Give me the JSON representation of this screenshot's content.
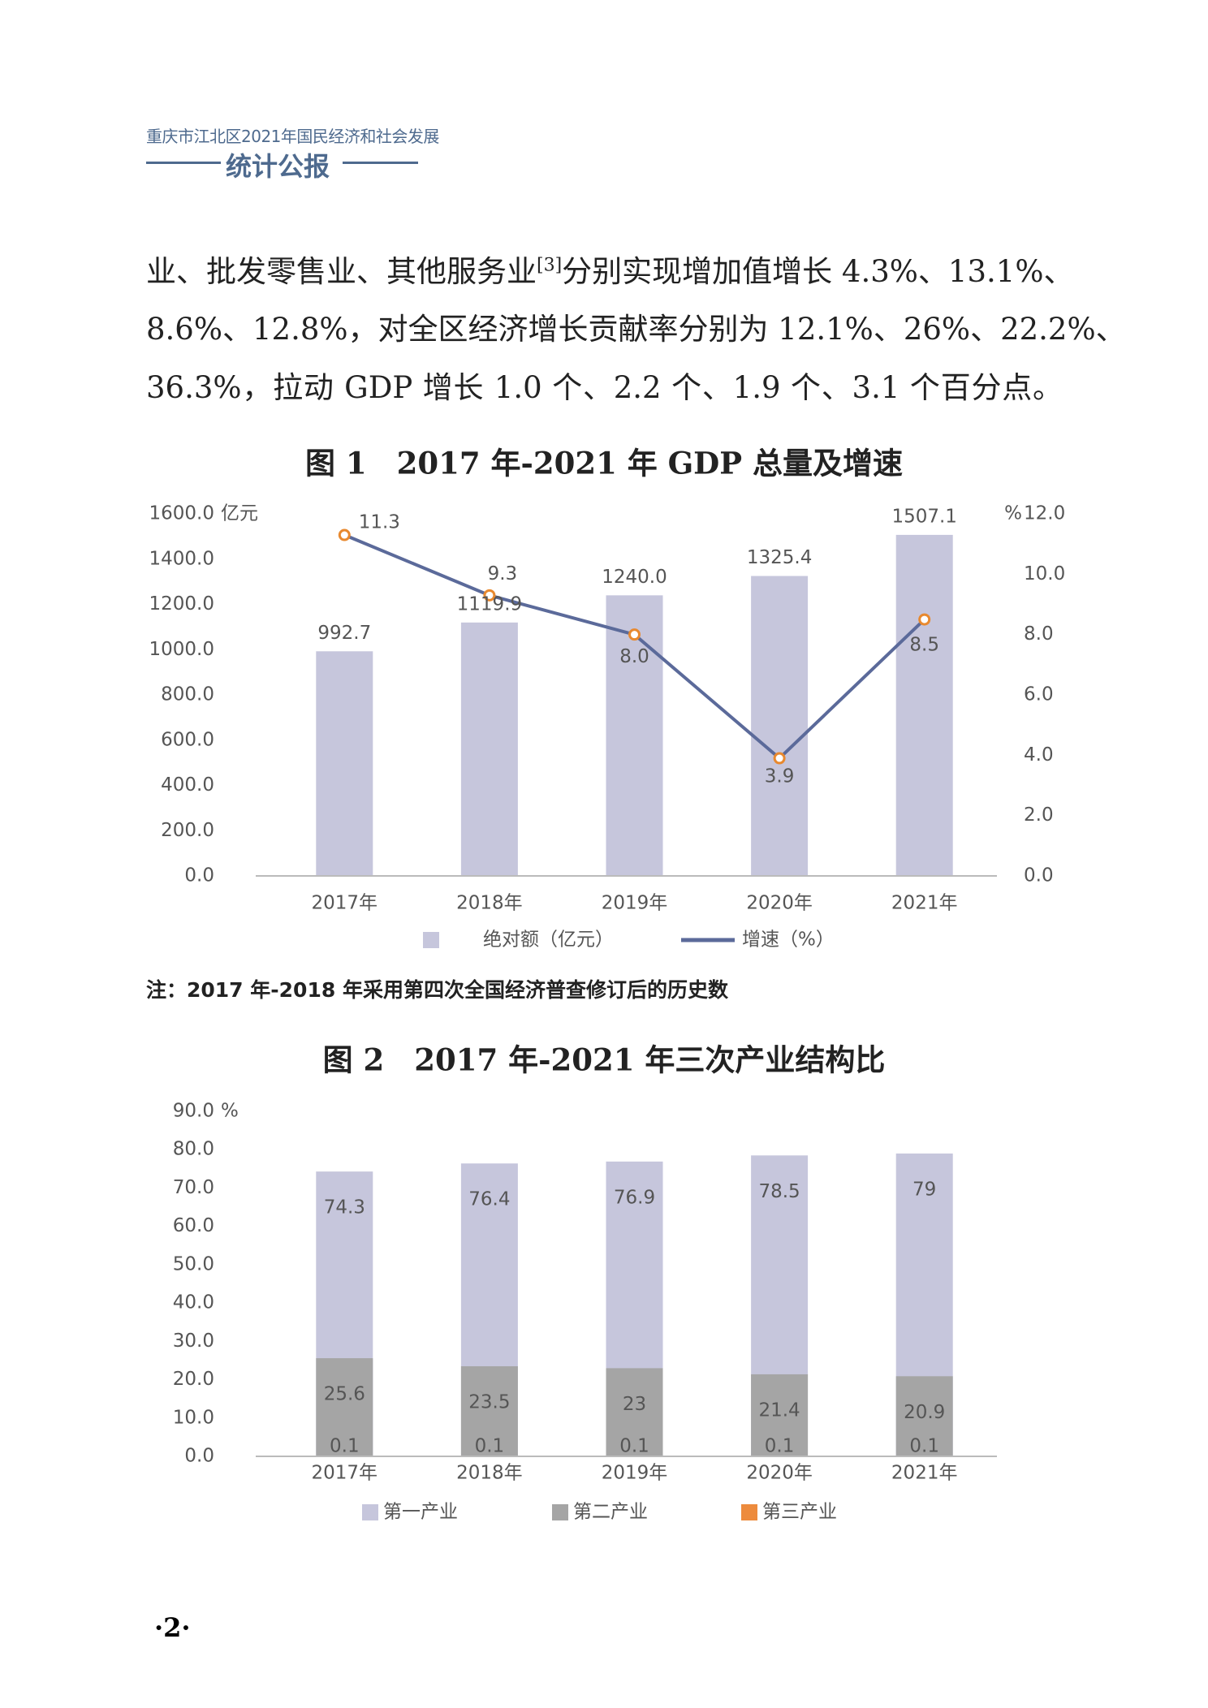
{
  "header": {
    "subtitle": "重庆市江北区2021年国民经济和社会发展",
    "title": "统计公报"
  },
  "paragraph": {
    "lines": [
      "业、批发零售业、其他服务业",
      "分别实现增加值增长 4.3%、13.1%、",
      "8.6%、12.8%，对全区经济增长贡献率分别为 12.1%、26%、22.2%、",
      "36.3%，拉动 GDP 增长 1.0 个、2.2 个、1.9 个、3.1 个百分点。"
    ],
    "footnote_ref": "[3]"
  },
  "note": "注：2017 年-2018 年采用第四次全国经济普查修订后的历史数",
  "page_number": "·2·",
  "chart_data": [
    {
      "type": "bar",
      "title": "图 1　2017 年-2021 年 GDP 总量及增速",
      "y_label": "亿元",
      "y2_label": "%",
      "categories": [
        "2017年",
        "2018年",
        "2019年",
        "2020年",
        "2021年"
      ],
      "series": [
        {
          "name": "绝对额（亿元）",
          "color": "#c6c6dc",
          "values": [
            992.7,
            1119.9,
            1240.0,
            1325.4,
            1507.1
          ],
          "value_labels": [
            "992.7",
            "1119.9",
            "1240.0",
            "1325.4",
            "1507.1"
          ]
        },
        {
          "name": "增速（%）",
          "type": "line",
          "axis": "y2",
          "color": "#5b6a9a",
          "marker_color": "#e8892f",
          "values": [
            11.3,
            9.3,
            8.0,
            3.9,
            8.5
          ],
          "value_labels": [
            "11.3",
            "9.3",
            "8.0",
            "3.9",
            "8.5"
          ]
        }
      ],
      "ylim": [
        0,
        1600
      ],
      "yticks": [
        {
          "value": 0,
          "label": "0.0"
        },
        {
          "value": 200,
          "label": "200.0"
        },
        {
          "value": 400,
          "label": "400.0"
        },
        {
          "value": 600,
          "label": "600.0"
        },
        {
          "value": 800,
          "label": "800.0"
        },
        {
          "value": 1000,
          "label": "1000.0"
        },
        {
          "value": 1200,
          "label": "1200.0"
        },
        {
          "value": 1400,
          "label": "1400.0"
        },
        {
          "value": 1600,
          "label": "1600.0"
        }
      ],
      "y2lim": [
        0,
        12
      ],
      "y2ticks": [
        {
          "value": 0,
          "label": "0.0"
        },
        {
          "value": 2,
          "label": "2.0"
        },
        {
          "value": 4,
          "label": "4.0"
        },
        {
          "value": 6,
          "label": "6.0"
        },
        {
          "value": 8,
          "label": "8.0"
        },
        {
          "value": 10,
          "label": "10.0"
        },
        {
          "value": 12,
          "label": "12.0"
        }
      ],
      "grid": false,
      "legend": "bottom"
    },
    {
      "type": "bar",
      "title": "图 2　2017 年-2021 年三次产业结构比",
      "y_label": "%",
      "categories": [
        "2017年",
        "2018年",
        "2019年",
        "2020年",
        "2021年"
      ],
      "series": [
        {
          "name": "第一产业",
          "color": "#c6c6dc",
          "values": [
            74.3,
            76.4,
            76.9,
            78.5,
            79
          ]
        },
        {
          "name": "第二产业",
          "color": "#a5a5a5",
          "values": [
            25.6,
            23.5,
            23,
            21.4,
            20.9
          ]
        },
        {
          "name": "第三产业",
          "color": "#ed8b3d",
          "values": [
            0.1,
            0.1,
            0.1,
            0.1,
            0.1
          ]
        }
      ],
      "ylim": [
        0,
        90
      ],
      "yticks": [
        {
          "value": 0,
          "label": "0.0"
        },
        {
          "value": 10,
          "label": "10.0"
        },
        {
          "value": 20,
          "label": "20.0"
        },
        {
          "value": 30,
          "label": "30.0"
        },
        {
          "value": 40,
          "label": "40.0"
        },
        {
          "value": 50,
          "label": "50.0"
        },
        {
          "value": 60,
          "label": "60.0"
        },
        {
          "value": 70,
          "label": "70.0"
        },
        {
          "value": 80,
          "label": "80.0"
        },
        {
          "value": 90,
          "label": "90.0"
        }
      ],
      "grid": false,
      "legend": "bottom"
    }
  ]
}
